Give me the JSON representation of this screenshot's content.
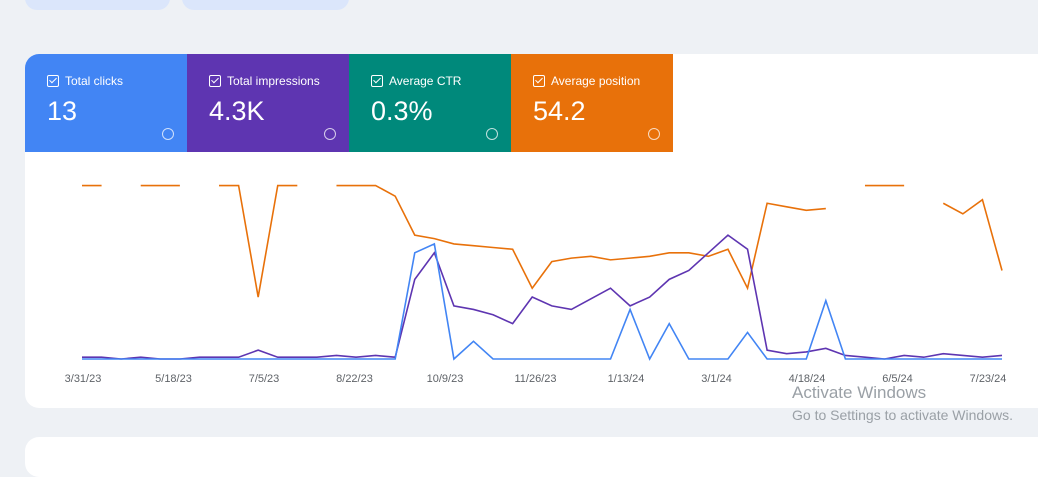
{
  "metrics": [
    {
      "label": "Total clicks",
      "value": "13",
      "color": "#4285f4"
    },
    {
      "label": "Total impressions",
      "value": "4.3K",
      "color": "#5e35b1"
    },
    {
      "label": "Average CTR",
      "value": "0.3%",
      "color": "#00897b"
    },
    {
      "label": "Average position",
      "value": "54.2",
      "color": "#e8710a"
    }
  ],
  "chart_data": {
    "type": "line",
    "xtick_labels": [
      "3/31/23",
      "5/18/23",
      "7/5/23",
      "8/22/23",
      "10/9/23",
      "11/26/23",
      "1/13/24",
      "3/1/24",
      "4/18/24",
      "6/5/24",
      "7/23/24"
    ],
    "ylim": [
      0,
      100
    ],
    "series": [
      {
        "color": "#e8710a",
        "values": [
          98,
          98,
          null,
          98,
          98,
          98,
          null,
          98,
          98,
          35,
          98,
          98,
          null,
          98,
          98,
          98,
          92,
          70,
          68,
          65,
          64,
          63,
          62,
          40,
          55,
          57,
          58,
          56,
          57,
          58,
          60,
          60,
          58,
          62,
          40,
          88,
          86,
          84,
          85,
          null,
          98,
          98,
          98,
          null,
          88,
          82,
          90,
          50
        ]
      },
      {
        "color": "#5e35b1",
        "values": [
          1,
          1,
          0,
          1,
          0,
          0,
          1,
          1,
          1,
          5,
          1,
          1,
          1,
          2,
          1,
          2,
          1,
          45,
          60,
          30,
          28,
          25,
          20,
          35,
          30,
          28,
          34,
          40,
          30,
          35,
          45,
          50,
          60,
          70,
          62,
          5,
          3,
          4,
          6,
          2,
          1,
          0,
          2,
          1,
          3,
          2,
          1,
          2
        ]
      },
      {
        "color": "#4285f4",
        "values": [
          0,
          0,
          0,
          0,
          0,
          0,
          0,
          0,
          0,
          0,
          0,
          0,
          0,
          0,
          0,
          0,
          0,
          60,
          65,
          0,
          10,
          0,
          0,
          0,
          0,
          0,
          0,
          0,
          28,
          0,
          20,
          0,
          0,
          0,
          15,
          0,
          0,
          0,
          33,
          0,
          0,
          0,
          0,
          0,
          0,
          0,
          0,
          0
        ]
      }
    ]
  },
  "watermark": {
    "title": "Activate Windows",
    "subtitle": "Go to Settings to activate Windows."
  }
}
